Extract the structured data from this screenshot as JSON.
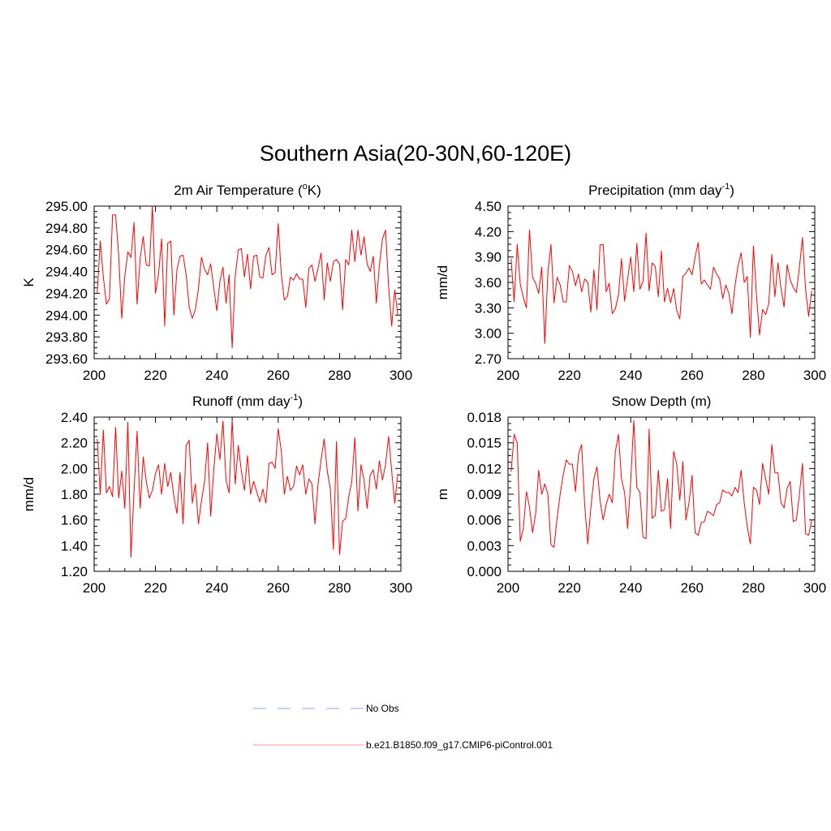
{
  "figure": {
    "title": "Southern Asia(20-30N,60-120E)"
  },
  "colors": {
    "model": "#ff0000",
    "obs": "#9999ff",
    "axis": "#000000"
  },
  "legend": {
    "entries": [
      {
        "label": "No Obs",
        "style": "dashed",
        "color": "#9999ff"
      },
      {
        "label": "b.e21.B1850.f09_g17.CMIP6-piControl.001",
        "style": "solid",
        "color": "#ff9999"
      }
    ]
  },
  "chart_data": [
    {
      "id": "temperature",
      "type": "line",
      "title": "2m Air Temperature (",
      "title_sup": "o",
      "title_end": "K)",
      "ylabel": "K",
      "xlim": [
        200,
        300
      ],
      "ylim": [
        293.6,
        295.0
      ],
      "yticks": [
        "295.00",
        "294.80",
        "294.60",
        "294.40",
        "294.20",
        "294.00",
        "293.80",
        "293.60"
      ],
      "xticks": [
        "200",
        "220",
        "240",
        "260",
        "280",
        "300"
      ],
      "series": [
        {
          "name": "b.e21.B1850.f09_g17.CMIP6-piControl.001",
          "x_start": 201,
          "values": [
            294.2,
            294.68,
            294.35,
            294.1,
            294.15,
            294.92,
            294.92,
            294.55,
            293.97,
            294.36,
            294.58,
            294.53,
            294.85,
            294.1,
            294.52,
            294.72,
            294.46,
            294.45,
            295.0,
            294.2,
            294.38,
            294.7,
            293.9,
            294.66,
            294.68,
            294.0,
            294.42,
            294.54,
            294.55,
            294.37,
            294.07,
            293.97,
            294.05,
            294.24,
            294.53,
            294.42,
            294.37,
            294.47,
            294.25,
            294.04,
            294.31,
            294.44,
            294.11,
            294.37,
            293.7,
            294.36,
            294.6,
            294.61,
            294.35,
            294.56,
            294.24,
            294.54,
            294.55,
            294.35,
            294.34,
            294.55,
            294.62,
            294.37,
            294.39,
            294.84,
            294.38,
            294.14,
            294.17,
            294.35,
            294.32,
            294.38,
            294.33,
            294.33,
            294.07,
            294.43,
            294.46,
            294.31,
            294.43,
            294.57,
            294.14,
            294.48,
            294.31,
            294.49,
            294.51,
            294.47,
            294.05,
            294.51,
            294.46,
            294.78,
            294.49,
            294.78,
            294.55,
            294.72,
            294.47,
            294.4,
            294.54,
            294.11,
            294.46,
            294.7,
            294.78,
            294.26,
            293.9,
            294.23,
            294.0
          ]
        }
      ]
    },
    {
      "id": "precipitation",
      "type": "line",
      "title": "Precipitation (mm day",
      "title_sup": "-1",
      "title_end": ")",
      "ylabel": "mm/d",
      "xlim": [
        200,
        300
      ],
      "ylim": [
        2.7,
        4.5
      ],
      "yticks": [
        "4.50",
        "4.20",
        "3.90",
        "3.60",
        "3.30",
        "3.00",
        "2.70"
      ],
      "xticks": [
        "200",
        "220",
        "240",
        "260",
        "280",
        "300"
      ],
      "series": [
        {
          "name": "b.e21.B1850.f09_g17.CMIP6-piControl.001",
          "x_start": 201,
          "values": [
            3.88,
            3.37,
            4.05,
            3.58,
            3.42,
            3.3,
            4.22,
            3.66,
            3.59,
            3.47,
            3.78,
            2.88,
            3.72,
            4.05,
            3.36,
            3.66,
            3.57,
            3.37,
            3.37,
            3.8,
            3.73,
            3.56,
            3.7,
            3.49,
            3.64,
            3.6,
            3.25,
            3.75,
            3.28,
            4.04,
            4.05,
            3.49,
            3.59,
            3.23,
            3.29,
            3.45,
            3.88,
            3.38,
            3.64,
            3.9,
            3.49,
            4.06,
            3.52,
            3.61,
            4.18,
            3.5,
            3.83,
            3.79,
            3.43,
            3.97,
            3.37,
            3.53,
            3.36,
            3.53,
            3.27,
            3.17,
            3.67,
            3.71,
            3.77,
            3.69,
            3.9,
            4.07,
            3.58,
            3.63,
            3.57,
            3.52,
            3.78,
            3.7,
            3.64,
            3.41,
            3.57,
            3.47,
            3.23,
            3.56,
            3.8,
            3.95,
            3.6,
            3.67,
            2.95,
            4.03,
            3.45,
            2.98,
            3.28,
            3.22,
            3.35,
            3.93,
            3.43,
            3.83,
            3.53,
            3.31,
            3.81,
            3.63,
            3.54,
            3.48,
            3.78,
            4.13,
            3.52,
            3.2,
            3.5
          ]
        }
      ]
    },
    {
      "id": "runoff",
      "type": "line",
      "title": "Runoff (mm day",
      "title_sup": "-1",
      "title_end": ")",
      "ylabel": "mm/d",
      "xlim": [
        200,
        300
      ],
      "ylim": [
        1.2,
        2.4
      ],
      "yticks": [
        "2.40",
        "2.20",
        "2.00",
        "1.80",
        "1.60",
        "1.40",
        "1.20"
      ],
      "xticks": [
        "200",
        "220",
        "240",
        "260",
        "280",
        "300"
      ],
      "series": [
        {
          "name": "b.e21.B1850.f09_g17.CMIP6-piControl.001",
          "x_start": 201,
          "values": [
            2.23,
            1.8,
            2.3,
            1.81,
            1.86,
            1.78,
            2.32,
            1.77,
            1.98,
            1.69,
            2.36,
            1.31,
            1.82,
            2.29,
            1.69,
            2.09,
            1.9,
            1.77,
            1.83,
            1.96,
            2.03,
            1.8,
            2.04,
            1.86,
            1.97,
            1.78,
            1.65,
            1.97,
            1.57,
            2.18,
            2.22,
            1.73,
            1.88,
            1.57,
            1.75,
            1.9,
            2.2,
            1.63,
            1.99,
            2.27,
            2.07,
            2.37,
            1.91,
            1.81,
            2.38,
            1.88,
            2.18,
            1.98,
            1.83,
            2.1,
            1.8,
            1.9,
            1.82,
            1.74,
            1.84,
            1.73,
            2.04,
            2.05,
            2.0,
            2.31,
            2.14,
            1.8,
            1.94,
            1.83,
            1.86,
            2.02,
            1.95,
            2.03,
            1.8,
            1.92,
            1.88,
            1.57,
            1.88,
            2.07,
            2.23,
            1.98,
            1.84,
            1.37,
            2.21,
            1.33,
            1.59,
            1.61,
            1.78,
            1.9,
            2.24,
            1.67,
            2.03,
            1.91,
            1.69,
            1.95,
            1.99,
            1.84,
            2.06,
            1.91,
            2.03,
            2.25,
            1.98,
            1.73,
            1.96
          ]
        }
      ]
    },
    {
      "id": "snow",
      "type": "line",
      "title": "Snow Depth (m)",
      "title_sup": "",
      "title_end": "",
      "ylabel": "m",
      "xlim": [
        200,
        300
      ],
      "ylim": [
        0.0,
        0.018
      ],
      "yticks": [
        "0.018",
        "0.015",
        "0.012",
        "0.009",
        "0.006",
        "0.003",
        "0.000"
      ],
      "xticks": [
        "200",
        "220",
        "240",
        "260",
        "280",
        "300"
      ],
      "series": [
        {
          "name": "b.e21.B1850.f09_g17.CMIP6-piControl.001",
          "x_start": 201,
          "values": [
            0.0116,
            0.016,
            0.015,
            0.0035,
            0.005,
            0.0093,
            0.0075,
            0.0045,
            0.0067,
            0.0118,
            0.009,
            0.0102,
            0.009,
            0.0031,
            0.0028,
            0.0062,
            0.009,
            0.0113,
            0.013,
            0.0125,
            0.0125,
            0.0093,
            0.0137,
            0.0148,
            0.0077,
            0.0032,
            0.0074,
            0.0108,
            0.0122,
            0.0083,
            0.006,
            0.0078,
            0.009,
            0.008,
            0.014,
            0.016,
            0.0108,
            0.0092,
            0.005,
            0.0105,
            0.0176,
            0.0098,
            0.0092,
            0.004,
            0.0038,
            0.0166,
            0.0062,
            0.0065,
            0.0118,
            0.007,
            0.0072,
            0.0108,
            0.005,
            0.014,
            0.0125,
            0.0083,
            0.0128,
            0.006,
            0.008,
            0.0112,
            0.0045,
            0.0042,
            0.0057,
            0.0058,
            0.007,
            0.0068,
            0.0065,
            0.0078,
            0.008,
            0.0095,
            0.0092,
            0.0092,
            0.0088,
            0.0098,
            0.0092,
            0.0118,
            0.008,
            0.0052,
            0.0032,
            0.0098,
            0.0095,
            0.0078,
            0.0126,
            0.0108,
            0.009,
            0.0148,
            0.0115,
            0.0115,
            0.008,
            0.0074,
            0.0097,
            0.0105,
            0.0058,
            0.006,
            0.009,
            0.0126,
            0.0044,
            0.0042,
            0.006
          ]
        }
      ]
    }
  ]
}
